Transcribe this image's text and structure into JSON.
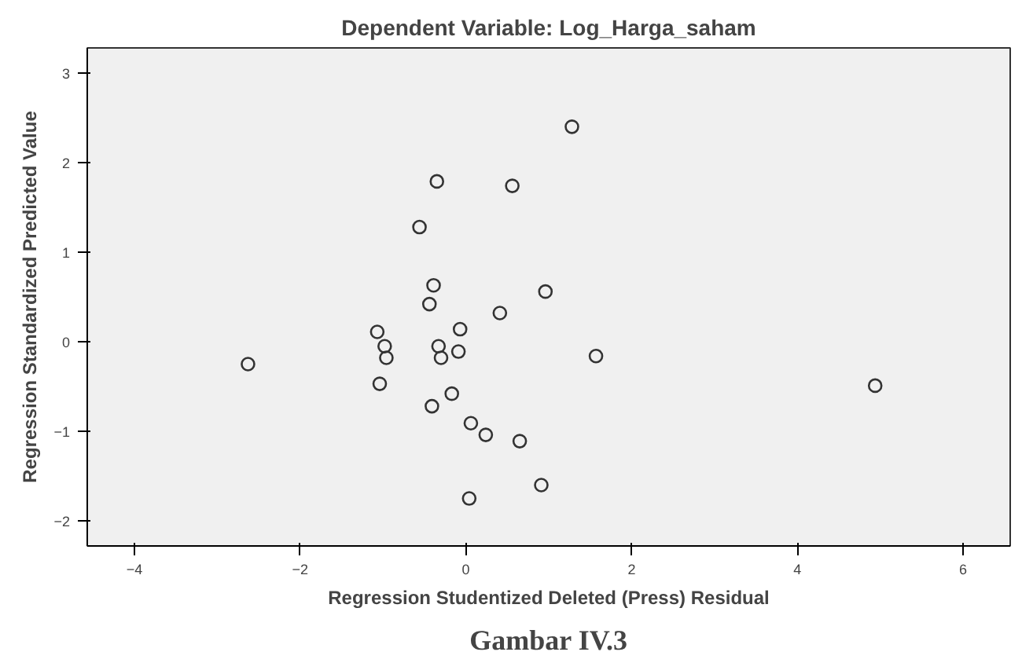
{
  "chart_data": {
    "type": "scatter",
    "title": "Dependent Variable: Log_Harga_saham",
    "xlabel": "Regression Studentized Deleted (Press) Residual",
    "ylabel": "Regression Standardized Predicted Value",
    "annotations": [
      "Gambar IV.3"
    ],
    "x": [
      1.28,
      -0.35,
      0.56,
      -0.56,
      -0.39,
      0.96,
      -0.44,
      0.41,
      -0.07,
      -1.07,
      -0.98,
      -0.33,
      -0.09,
      -0.96,
      -0.3,
      -2.63,
      1.57,
      4.94,
      -1.04,
      -0.17,
      -0.41,
      0.06,
      0.24,
      0.65,
      0.91,
      0.04
    ],
    "values": [
      2.4,
      1.79,
      1.74,
      1.28,
      0.63,
      0.56,
      0.42,
      0.32,
      0.14,
      0.11,
      -0.05,
      -0.05,
      -0.11,
      -0.18,
      -0.18,
      -0.25,
      -0.16,
      -0.49,
      -0.47,
      -0.58,
      -0.72,
      -0.91,
      -1.04,
      -1.11,
      -1.6,
      -1.75
    ],
    "color": "#333333",
    "marker": "circle",
    "xlim": [
      -4.57,
      6.57
    ],
    "ylim": [
      -2.28,
      3.28
    ],
    "xticks": [
      -4,
      -2,
      0,
      2,
      4,
      6
    ],
    "yticks": [
      -2,
      -1,
      0,
      1,
      2,
      3
    ],
    "grid": false
  }
}
